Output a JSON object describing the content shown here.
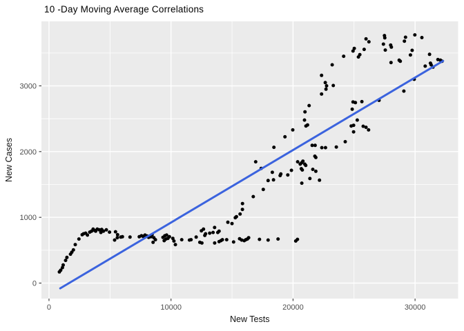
{
  "colors": {
    "panel_bg": "#EBEBEB",
    "grid": "#FFFFFF",
    "point": "#000000",
    "trend": "#3B63DE",
    "tick_mark": "#333333",
    "tick_label": "#4D4D4D",
    "axis_title": "#111111",
    "title": "#000000",
    "page_bg": "#FFFFFF"
  },
  "chart_data": {
    "type": "scatter",
    "title": "10 -Day Moving Average Correlations",
    "xlabel": "New Tests",
    "ylabel": "New Cases",
    "xlim": [
      -620,
      33530
    ],
    "ylim": [
      -236,
      3981
    ],
    "x_ticks": [
      0,
      10000,
      20000,
      30000
    ],
    "x_tick_labels": [
      "0",
      "10000",
      "20000",
      "30000"
    ],
    "y_ticks": [
      0,
      1000,
      2000,
      3000
    ],
    "y_tick_labels": [
      "0",
      "1000",
      "2000",
      "3000"
    ],
    "x_minor": [
      5000,
      15000,
      25000
    ],
    "y_minor": [
      500,
      1500,
      2500,
      3500
    ],
    "grid": true,
    "legend": "none",
    "trend_line": {
      "type": "linear",
      "start": [
        920,
        -80
      ],
      "end": [
        32300,
        3380
      ]
    },
    "points": [
      [
        850,
        170
      ],
      [
        960,
        195
      ],
      [
        1100,
        235
      ],
      [
        1160,
        275
      ],
      [
        1360,
        345
      ],
      [
        1470,
        390
      ],
      [
        1760,
        440
      ],
      [
        1870,
        470
      ],
      [
        2000,
        505
      ],
      [
        2150,
        585
      ],
      [
        2450,
        670
      ],
      [
        2720,
        735
      ],
      [
        2830,
        750
      ],
      [
        3000,
        760
      ],
      [
        3150,
        730
      ],
      [
        3340,
        775
      ],
      [
        3490,
        790
      ],
      [
        3620,
        820
      ],
      [
        3740,
        800
      ],
      [
        3830,
        790
      ],
      [
        3960,
        820
      ],
      [
        4130,
        810
      ],
      [
        4250,
        770
      ],
      [
        4320,
        815
      ],
      [
        4460,
        790
      ],
      [
        4700,
        810
      ],
      [
        4960,
        775
      ],
      [
        5380,
        655
      ],
      [
        5450,
        780
      ],
      [
        5600,
        690
      ],
      [
        5620,
        735
      ],
      [
        5890,
        700
      ],
      [
        6020,
        705
      ],
      [
        6640,
        700
      ],
      [
        7400,
        705
      ],
      [
        7580,
        720
      ],
      [
        7720,
        710
      ],
      [
        7870,
        730
      ],
      [
        8040,
        715
      ],
      [
        8170,
        695
      ],
      [
        8340,
        705
      ],
      [
        8450,
        735
      ],
      [
        8530,
        620
      ],
      [
        8590,
        690
      ],
      [
        8720,
        660
      ],
      [
        9340,
        695
      ],
      [
        9440,
        645
      ],
      [
        9490,
        720
      ],
      [
        9580,
        670
      ],
      [
        9640,
        730
      ],
      [
        9740,
        680
      ],
      [
        9870,
        705
      ],
      [
        10150,
        680
      ],
      [
        10240,
        640
      ],
      [
        10360,
        585
      ],
      [
        10880,
        660
      ],
      [
        11510,
        655
      ],
      [
        11640,
        660
      ],
      [
        12060,
        700
      ],
      [
        12360,
        620
      ],
      [
        12530,
        610
      ],
      [
        12490,
        795
      ],
      [
        12660,
        820
      ],
      [
        12770,
        725
      ],
      [
        12830,
        750
      ],
      [
        13170,
        760
      ],
      [
        13450,
        770
      ],
      [
        13570,
        845
      ],
      [
        13580,
        610
      ],
      [
        13830,
        770
      ],
      [
        13940,
        790
      ],
      [
        13940,
        630
      ],
      [
        14090,
        645
      ],
      [
        14210,
        660
      ],
      [
        14560,
        660
      ],
      [
        14660,
        925
      ],
      [
        15000,
        905
      ],
      [
        15130,
        625
      ],
      [
        15270,
        995
      ],
      [
        15360,
        1010
      ],
      [
        15620,
        675
      ],
      [
        15660,
        1050
      ],
      [
        15790,
        655
      ],
      [
        15850,
        1120
      ],
      [
        16000,
        645
      ],
      [
        16130,
        660
      ],
      [
        16260,
        670
      ],
      [
        16360,
        690
      ],
      [
        17250,
        665
      ],
      [
        17960,
        655
      ],
      [
        18770,
        670
      ],
      [
        20220,
        640
      ],
      [
        20360,
        665
      ],
      [
        15860,
        1210
      ],
      [
        16740,
        1315
      ],
      [
        16940,
        1845
      ],
      [
        17390,
        1745
      ],
      [
        17560,
        1425
      ],
      [
        17960,
        1560
      ],
      [
        18300,
        1685
      ],
      [
        18400,
        1570
      ],
      [
        18430,
        2065
      ],
      [
        18940,
        1635
      ],
      [
        19000,
        1660
      ],
      [
        19340,
        2225
      ],
      [
        19570,
        1645
      ],
      [
        19870,
        1715
      ],
      [
        19980,
        2330
      ],
      [
        20380,
        1845
      ],
      [
        20590,
        1810
      ],
      [
        20700,
        1830
      ],
      [
        20680,
        1740
      ],
      [
        20760,
        1720
      ],
      [
        20810,
        1855
      ],
      [
        20960,
        1810
      ],
      [
        21040,
        1790
      ],
      [
        20720,
        1520
      ],
      [
        20940,
        2480
      ],
      [
        20980,
        2605
      ],
      [
        21060,
        2390
      ],
      [
        21190,
        2405
      ],
      [
        21320,
        2700
      ],
      [
        21380,
        1590
      ],
      [
        21570,
        2095
      ],
      [
        21620,
        1730
      ],
      [
        21810,
        2095
      ],
      [
        21870,
        1910
      ],
      [
        21870,
        1700
      ],
      [
        21790,
        1930
      ],
      [
        22170,
        1565
      ],
      [
        25260,
        2480
      ],
      [
        24770,
        2390
      ],
      [
        24960,
        2400
      ],
      [
        25750,
        2385
      ],
      [
        25980,
        2370
      ],
      [
        26190,
        2330
      ],
      [
        24960,
        2300
      ],
      [
        24280,
        2150
      ],
      [
        22360,
        2060
      ],
      [
        22660,
        2060
      ],
      [
        23550,
        2070
      ],
      [
        22340,
        3160
      ],
      [
        22640,
        3050
      ],
      [
        22750,
        3000
      ],
      [
        22700,
        2950
      ],
      [
        22340,
        2875
      ],
      [
        23210,
        3320
      ],
      [
        23300,
        3005
      ],
      [
        24150,
        3450
      ],
      [
        24920,
        3530
      ],
      [
        25020,
        3570
      ],
      [
        25470,
        3475
      ],
      [
        25360,
        3440
      ],
      [
        25980,
        3715
      ],
      [
        26220,
        3670
      ],
      [
        25830,
        3555
      ],
      [
        24920,
        2755
      ],
      [
        25110,
        2745
      ],
      [
        24850,
        2645
      ],
      [
        25640,
        2760
      ],
      [
        27490,
        3765
      ],
      [
        27520,
        3730
      ],
      [
        27410,
        3635
      ],
      [
        27560,
        3545
      ],
      [
        28000,
        3620
      ],
      [
        28060,
        3590
      ],
      [
        28030,
        3355
      ],
      [
        28700,
        3390
      ],
      [
        28790,
        3375
      ],
      [
        29220,
        3740
      ],
      [
        29130,
        3680
      ],
      [
        29620,
        3470
      ],
      [
        29760,
        3540
      ],
      [
        29980,
        3775
      ],
      [
        30560,
        3735
      ],
      [
        30830,
        3300
      ],
      [
        31190,
        3480
      ],
      [
        31260,
        3345
      ],
      [
        31320,
        3320
      ],
      [
        32080,
        3390
      ],
      [
        32210,
        3375
      ],
      [
        27050,
        2780
      ],
      [
        29080,
        2920
      ],
      [
        29930,
        3100
      ],
      [
        31470,
        3285
      ],
      [
        31870,
        3400
      ]
    ]
  }
}
